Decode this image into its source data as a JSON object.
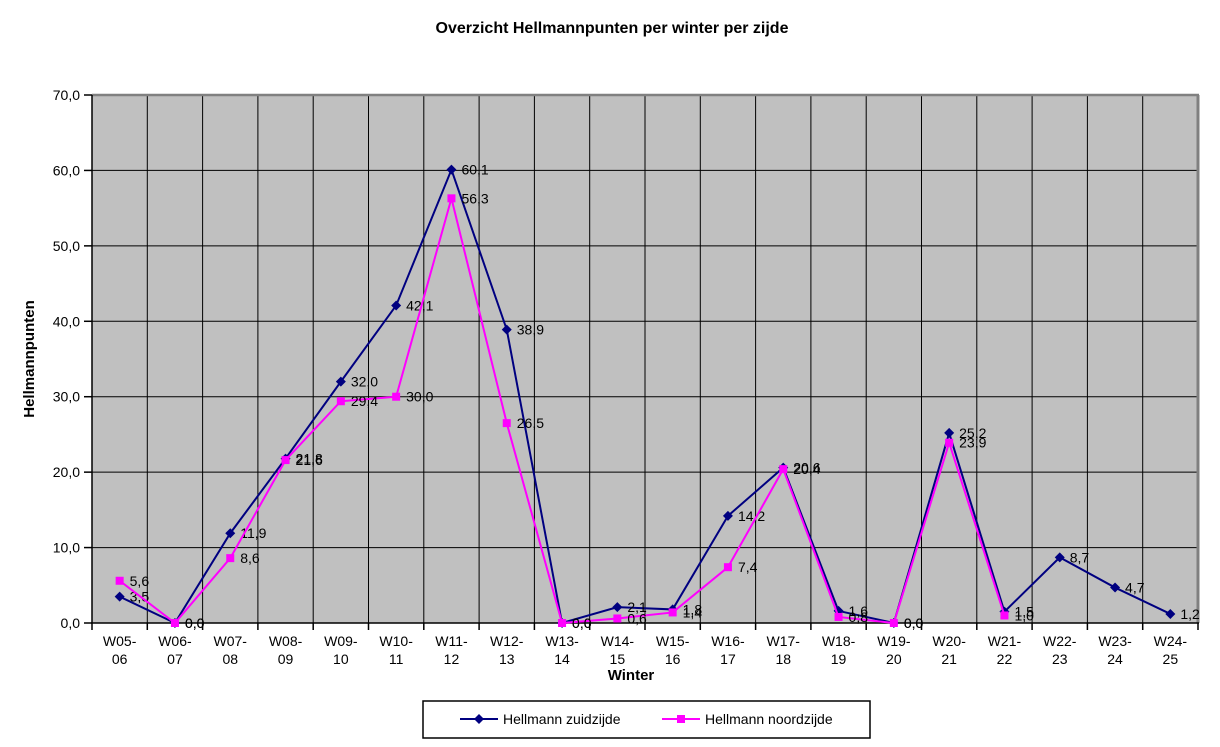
{
  "chart_data": {
    "type": "line",
    "title": "Overzicht Hellmannpunten per winter per zijde",
    "xlabel": "Winter",
    "ylabel": "Hellmannpunten",
    "ylim": [
      0,
      70
    ],
    "ytick_step": 10,
    "decimal_separator": ",",
    "grid": true,
    "legend_position": "bottom",
    "plot_bg_color": "#c0c0c0",
    "grid_color": "#000000",
    "border_color": "#808080",
    "categories": [
      "W05-06",
      "W06-07",
      "W07-08",
      "W08-09",
      "W09-10",
      "W10-11",
      "W11-12",
      "W12-13",
      "W13-14",
      "W14-15",
      "W15-16",
      "W16-17",
      "W17-18",
      "W18-19",
      "W19-20",
      "W20-21",
      "W21-22",
      "W22-23",
      "W23-24",
      "W24-25"
    ],
    "series": [
      {
        "name": "Hellmann zuidzijde",
        "color": "#000080",
        "marker": "diamond",
        "values": [
          3.5,
          0.0,
          11.9,
          21.8,
          32.0,
          42.1,
          60.1,
          38.9,
          0.0,
          2.1,
          1.8,
          14.2,
          20.6,
          1.6,
          0.0,
          25.2,
          1.5,
          8.7,
          4.7,
          1.2
        ]
      },
      {
        "name": "Hellmann noordzijde",
        "color": "#ff00ff",
        "marker": "square",
        "values": [
          5.6,
          0.0,
          8.6,
          21.6,
          29.4,
          30.0,
          56.3,
          26.5,
          0.0,
          0.6,
          1.4,
          7.4,
          20.4,
          0.8,
          0.0,
          23.9,
          1.0
        ]
      }
    ]
  }
}
